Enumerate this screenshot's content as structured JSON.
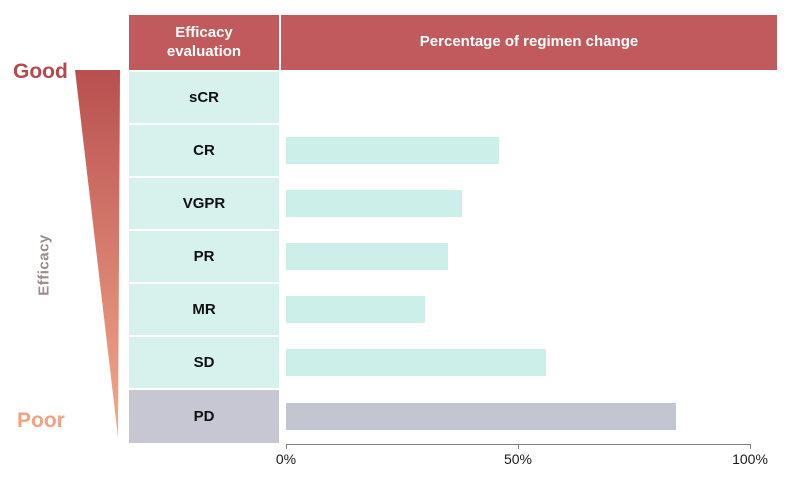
{
  "annotations": {
    "good_label": "Good",
    "poor_label": "Poor",
    "axis_label": "Efficacy"
  },
  "table": {
    "col1_header": "Efficacy evaluation",
    "col2_header": "Percentage of regimen change"
  },
  "colors": {
    "header_bg": "#c05a5c",
    "header_text": "#ffffff",
    "row_teal": "#d7f1ed",
    "row_gray": "#c6c7d2",
    "bar_teal": "#cdefea",
    "bar_gray": "#c3c5d1",
    "good_text": "#b5494b",
    "poor_text": "#f2a183",
    "efficacy_text": "#9c8b8b",
    "triangle_top": "#b8504f",
    "triangle_bottom": "#f5a98d",
    "axis_line": "#7f7f7f"
  },
  "chart_data": {
    "type": "bar",
    "orientation": "horizontal",
    "title": "Percentage of regimen change",
    "categories": [
      "sCR",
      "CR",
      "VGPR",
      "PR",
      "MR",
      "SD",
      "PD"
    ],
    "values": [
      0,
      46,
      38,
      35,
      30,
      56,
      84
    ],
    "row_styles": [
      "teal",
      "teal",
      "teal",
      "teal",
      "teal",
      "teal",
      "gray"
    ],
    "x_ticks": [
      {
        "value": 0,
        "label": "0%"
      },
      {
        "value": 50,
        "label": "50%"
      },
      {
        "value": 100,
        "label": "100%"
      }
    ],
    "xlim": [
      0,
      100
    ],
    "xlabel": "",
    "ylabel": "Efficacy",
    "legend": null,
    "grid": false,
    "note": "sCR row has no bar; PD row and bar are gray, all other rows/bars are light teal"
  }
}
